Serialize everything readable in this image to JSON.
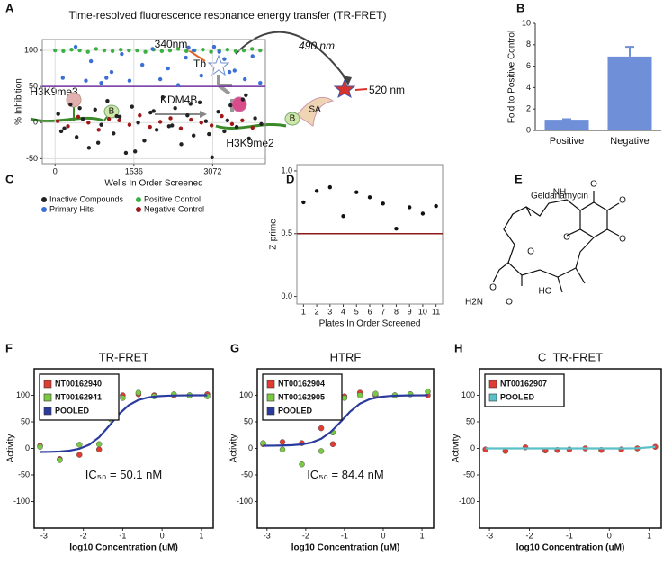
{
  "panel_labels": [
    "A",
    "B",
    "C",
    "D",
    "E",
    "F",
    "G",
    "H"
  ],
  "diagram": {
    "title": "Time-resolved fluorescence resonance energy transfer (TR-FRET)",
    "excitation": "340nm",
    "donor": "Tb",
    "transfer": "490 nm",
    "emission": "520 nm",
    "substrate": "H3K9me3",
    "biotin_1": "B",
    "enzyme": "KDM4B",
    "biotin_2": "B",
    "acceptor": "SA",
    "product": "H3K9me2"
  },
  "structure": {
    "name": "Geldanamycin",
    "atoms": [
      "NH",
      "O",
      "O",
      "O",
      "O",
      "O",
      "H2N",
      "O",
      "HO",
      "O"
    ]
  },
  "chart_data": [
    {
      "type": "bar",
      "ylabel": "Fold to Positive Control",
      "categories": [
        "Positive",
        "Negative"
      ],
      "values": [
        1,
        6.9
      ],
      "errors": [
        0.05,
        0.9
      ],
      "color": "#6f8fd8",
      "ylim": [
        0,
        10
      ],
      "yticks": [
        0,
        2,
        4,
        6,
        8,
        10
      ],
      "frame": "axes"
    },
    {
      "type": "scatter",
      "ylabel": "% Inhibition",
      "xlabel": "Wells In Order Screened",
      "xlim": [
        -250,
        4100
      ],
      "xticks": [
        0,
        1536,
        3072
      ],
      "ylim": [
        -57,
        115
      ],
      "yticks": [
        -50,
        0,
        50,
        100
      ],
      "grid": true,
      "legend": "bottom",
      "hline": 50,
      "hline_color": "#7030a0",
      "series": [
        {
          "name": "Inactive Compounds",
          "color": "#222222",
          "mode": "markers",
          "x": [
            60,
            180,
            300,
            420,
            540,
            660,
            780,
            900,
            1020,
            1140,
            1260,
            1380,
            1500,
            1620,
            1740,
            1860,
            1980,
            2100,
            2220,
            2340,
            2460,
            2580,
            2700,
            2820,
            2940,
            3060,
            3180,
            3300,
            3420,
            3540,
            3660,
            3780,
            3900,
            4020,
            120,
            480,
            840,
            1200,
            1560,
            1920,
            2280,
            2640,
            3000,
            3360,
            3720
          ],
          "values": [
            12,
            -8,
            25,
            -20,
            5,
            -35,
            18,
            -3,
            30,
            -15,
            8,
            -42,
            22,
            0,
            -25,
            14,
            -10,
            35,
            -5,
            20,
            -30,
            10,
            -18,
            28,
            2,
            -48,
            15,
            -12,
            24,
            -6,
            32,
            -22,
            6,
            -2,
            -12,
            20,
            -28,
            9,
            -40,
            16,
            -4,
            26,
            -16,
            3,
            38
          ]
        },
        {
          "name": "Positive Control",
          "color": "#3cb043",
          "mode": "markers",
          "x": [
            0,
            160,
            320,
            480,
            640,
            800,
            960,
            1120,
            1280,
            1440,
            1600,
            1760,
            1920,
            2080,
            2240,
            2400,
            2560,
            2720,
            2880,
            3040,
            3200,
            3360,
            3520,
            3680,
            3840,
            4000
          ],
          "values": [
            100,
            99,
            101,
            100,
            98,
            102,
            100,
            99,
            101,
            100,
            100,
            98,
            101,
            99,
            100,
            102,
            99,
            100,
            101,
            98,
            100,
            101,
            99,
            100,
            102,
            100
          ]
        },
        {
          "name": "Primary Hits",
          "color": "#3b6fd6",
          "mode": "markers",
          "x": [
            150,
            400,
            700,
            900,
            1100,
            1300,
            1450,
            1700,
            1900,
            2050,
            2200,
            2400,
            2550,
            2700,
            2850,
            3100,
            3200,
            3300,
            3500,
            3700,
            3850,
            4000,
            600,
            1000,
            2600,
            3400
          ],
          "values": [
            62,
            105,
            85,
            55,
            70,
            95,
            58,
            80,
            102,
            60,
            75,
            52,
            90,
            100,
            65,
            105,
            98,
            88,
            72,
            60,
            92,
            55,
            58,
            62,
            104,
            70
          ]
        },
        {
          "name": "Negative Control",
          "color": "#a01818",
          "mode": "markers",
          "x": [
            50,
            250,
            450,
            650,
            850,
            1050,
            1250,
            1450,
            1650,
            1850,
            2050,
            2250,
            2450,
            2650,
            2850,
            3050,
            3250,
            3450,
            3650,
            3850
          ],
          "values": [
            2,
            -5,
            8,
            0,
            -10,
            5,
            3,
            -3,
            10,
            -6,
            1,
            6,
            -8,
            4,
            0,
            -4,
            9,
            -2,
            3,
            -7
          ]
        }
      ]
    },
    {
      "type": "scatter",
      "ylabel": "Z-prime",
      "xlabel": "Plates In Order Screened",
      "xlim": [
        0.5,
        11.5
      ],
      "xticks": [
        1,
        2,
        3,
        4,
        5,
        6,
        7,
        8,
        9,
        10,
        11
      ],
      "ylim": [
        -0.06,
        1.05
      ],
      "yticks": [
        {
          "value": 0,
          "label": "0.0"
        },
        0.5,
        {
          "value": 1,
          "label": "1.0"
        }
      ],
      "hline": 0.5,
      "hline_color": "#8b1a1a",
      "series": [
        {
          "color": "#111111",
          "mode": "markers",
          "x": [
            1,
            2,
            3,
            4,
            5,
            6,
            7,
            8,
            9,
            10,
            11
          ],
          "values": [
            0.75,
            0.84,
            0.87,
            0.64,
            0.83,
            0.79,
            0.74,
            0.54,
            0.71,
            0.66,
            0.72
          ]
        }
      ]
    },
    {
      "type": "scatter",
      "title": "TR-FRET",
      "ylabel": "Activity",
      "xlabel": "log10 Concentration (uM)",
      "annotation": "IC₅₀ = 50.1 nM",
      "xlim": [
        -3.25,
        1.3
      ],
      "xticks": [
        -3,
        -2,
        -1,
        0,
        1
      ],
      "ylim": [
        -150,
        150
      ],
      "yticks": [
        -100,
        -50,
        0,
        50,
        100
      ],
      "legend": "upper left",
      "series": [
        {
          "name": "NT00162940",
          "color": "#e03c31",
          "mode": "markers",
          "x": [
            -3.1,
            -2.6,
            -2.1,
            -1.6,
            -1.3,
            -1.0,
            -0.6,
            -0.2,
            0.3,
            0.7,
            1.15
          ],
          "values": [
            5,
            -20,
            -12,
            -2,
            65,
            100,
            102,
            100,
            100,
            100,
            102
          ]
        },
        {
          "name": "NT00162941",
          "color": "#7ac943",
          "mode": "markers",
          "x": [
            -3.1,
            -2.6,
            -2.1,
            -1.6,
            -1.3,
            -1.0,
            -0.6,
            -0.2,
            0.3,
            0.7,
            1.15
          ],
          "values": [
            3,
            -22,
            7,
            8,
            55,
            95,
            105,
            98,
            102,
            100,
            98
          ]
        },
        {
          "name": "POOLED",
          "color": "#2b3a9e",
          "mode": "line",
          "x": [
            -3.1,
            -2.85,
            -2.6,
            -2.35,
            -2.1,
            -1.85,
            -1.6,
            -1.35,
            -1.1,
            -0.85,
            -0.6,
            -0.35,
            -0.1,
            0.15,
            0.4,
            0.65,
            0.9,
            1.15
          ],
          "values": [
            -6.8,
            -6.5,
            -5.8,
            -4.2,
            -0.6,
            6.9,
            21,
            41.9,
            64.3,
            81.3,
            91.2,
            96.1,
            98.3,
            99.3,
            99.7,
            99.9,
            100,
            100
          ]
        }
      ]
    },
    {
      "type": "scatter",
      "title": "HTRF",
      "ylabel": "Activity",
      "xlabel": "log10 Concentration (uM)",
      "annotation": "IC₅₀ = 84.4 nM",
      "xlim": [
        -3.25,
        1.3
      ],
      "xticks": [
        -3,
        -2,
        -1,
        0,
        1
      ],
      "ylim": [
        -150,
        150
      ],
      "yticks": [
        -100,
        -50,
        0,
        50,
        100
      ],
      "legend": "upper left",
      "series": [
        {
          "name": "NT00162904",
          "color": "#e03c31",
          "mode": "markers",
          "x": [
            -3.1,
            -2.6,
            -2.1,
            -1.6,
            -1.3,
            -1.0,
            -0.6,
            -0.2,
            0.3,
            0.7,
            1.15
          ],
          "values": [
            8,
            12,
            10,
            38,
            8,
            98,
            105,
            100,
            100,
            102,
            100
          ]
        },
        {
          "name": "NT00162905",
          "color": "#7ac943",
          "mode": "markers",
          "x": [
            -3.1,
            -2.6,
            -2.1,
            -1.6,
            -1.3,
            -1.0,
            -0.6,
            -0.2,
            0.3,
            0.7,
            1.15
          ],
          "values": [
            10,
            -2,
            -30,
            -5,
            30,
            95,
            100,
            103,
            100,
            102,
            107
          ]
        },
        {
          "name": "POOLED",
          "color": "#2b3a9e",
          "mode": "line",
          "x": [
            -3.1,
            -2.85,
            -2.6,
            -2.35,
            -2.1,
            -1.85,
            -1.6,
            -1.35,
            -1.1,
            -0.85,
            -0.6,
            -0.35,
            -0.1,
            0.15,
            0.4,
            0.65,
            0.9,
            1.15
          ],
          "values": [
            5.1,
            5.2,
            5.5,
            6.1,
            7.6,
            11,
            18.1,
            31.2,
            50,
            69.7,
            84.4,
            92.7,
            96.8,
            98.6,
            99.4,
            99.8,
            99.9,
            100
          ]
        }
      ]
    },
    {
      "type": "scatter",
      "title": "C_TR-FRET",
      "ylabel": "Activity",
      "xlabel": "log10 Concentration (uM)",
      "xlim": [
        -3.25,
        1.3
      ],
      "xticks": [
        -3,
        -2,
        -1,
        0,
        1
      ],
      "ylim": [
        -150,
        150
      ],
      "yticks": [
        -100,
        -50,
        0,
        50,
        100
      ],
      "legend": "upper left",
      "series": [
        {
          "name": "NT00162907",
          "color": "#e03c31",
          "mode": "markers",
          "x": [
            -3.1,
            -2.6,
            -2.1,
            -1.6,
            -1.3,
            -1.0,
            -0.6,
            -0.2,
            0.3,
            0.7,
            1.15
          ],
          "values": [
            -2,
            -5,
            2,
            -4,
            -3,
            -2,
            0,
            -3,
            -2,
            0,
            3
          ]
        },
        {
          "name": "POOLED",
          "color": "#5bc0c8",
          "mode": "line",
          "x": [
            -3.1,
            -2.6,
            -2.1,
            -1.6,
            -1.1,
            -0.6,
            -0.1,
            0.4,
            0.7,
            0.9,
            1.15
          ],
          "values": [
            0,
            0,
            0,
            0,
            0,
            0,
            0,
            0,
            0.3,
            1.5,
            3
          ]
        }
      ]
    }
  ]
}
